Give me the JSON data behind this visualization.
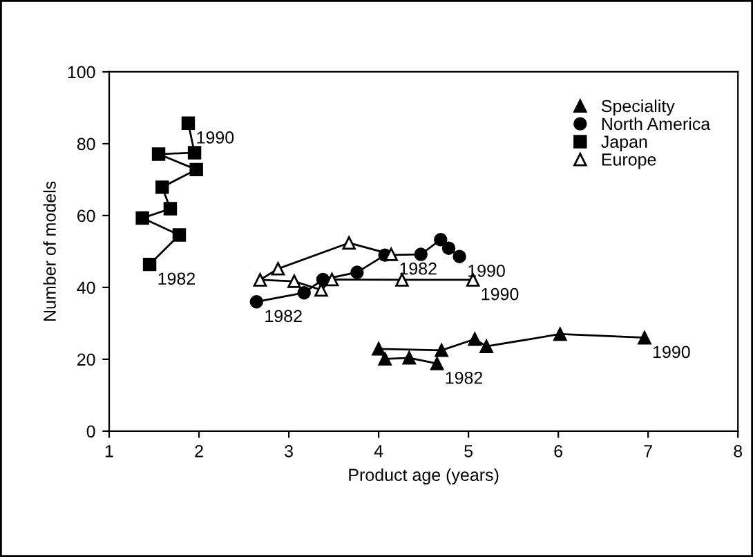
{
  "chart_data": {
    "type": "line",
    "xlabel": "Product age (years)",
    "ylabel": "Number of models",
    "xlim": [
      1,
      8
    ],
    "ylim": [
      0,
      100
    ],
    "xticks": [
      1,
      2,
      3,
      4,
      5,
      6,
      7,
      8
    ],
    "yticks": [
      0,
      20,
      40,
      60,
      80,
      100
    ],
    "grid": false,
    "legend": "top right",
    "line_style": "solid",
    "series": [
      {
        "name": "Speciality",
        "color": "#000000",
        "marker": "triangle",
        "x": [
          4.65,
          4.34,
          4.07,
          4.0,
          4.7,
          5.07,
          5.2,
          6.02,
          6.96
        ],
        "values": [
          18.8,
          20.4,
          20.1,
          22.9,
          22.5,
          25.6,
          23.6,
          27.0,
          26.0
        ]
      },
      {
        "name": "North America",
        "color": "#000000",
        "marker": "circle",
        "x": [
          2.64,
          3.17,
          3.38,
          3.76,
          4.07,
          4.47,
          4.69,
          4.78,
          4.9
        ],
        "values": [
          36.0,
          38.5,
          42.2,
          44.2,
          49.0,
          49.2,
          53.3,
          50.9,
          48.6
        ]
      },
      {
        "name": "Japan",
        "color": "#000000",
        "marker": "square",
        "x": [
          1.45,
          1.78,
          1.37,
          1.68,
          1.59,
          1.97,
          1.55,
          1.95,
          1.88
        ],
        "values": [
          46.4,
          54.6,
          59.3,
          61.9,
          67.9,
          72.8,
          77.1,
          77.5,
          85.7
        ]
      },
      {
        "name": "Europe",
        "color": "#ffffff",
        "marker": "triangle",
        "x": [
          4.14,
          3.67,
          2.88,
          2.68,
          3.06,
          3.36,
          3.48,
          4.26,
          5.05
        ],
        "values": [
          49.2,
          52.4,
          45.2,
          42.1,
          41.7,
          39.3,
          42.2,
          42.1,
          42.1
        ]
      }
    ],
    "annotations": [
      {
        "text": "1982",
        "x": 4.65,
        "y": 18.8
      },
      {
        "text": "1990",
        "x": 6.96,
        "y": 26.0
      },
      {
        "text": "1982",
        "x": 2.64,
        "y": 36.0
      },
      {
        "text": "1990",
        "x": 4.9,
        "y": 48.6
      },
      {
        "text": "1982",
        "x": 1.45,
        "y": 46.4
      },
      {
        "text": "1990",
        "x": 1.88,
        "y": 85.7
      },
      {
        "text": "1982",
        "x": 4.14,
        "y": 49.2
      },
      {
        "text": "1990",
        "x": 5.05,
        "y": 42.1
      }
    ]
  }
}
